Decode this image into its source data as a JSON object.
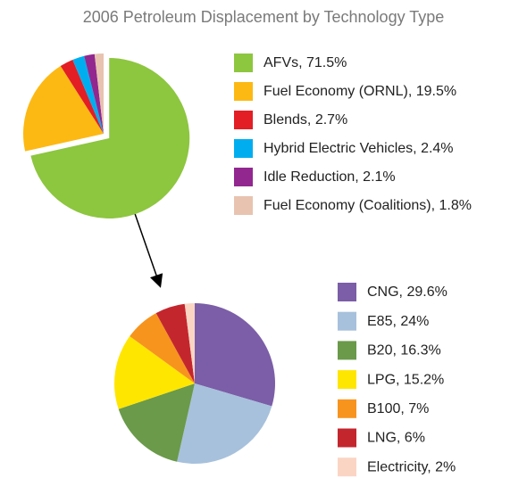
{
  "chart_data": [
    {
      "type": "pie",
      "title": "2006 Petroleum Displacement by Technology Type",
      "categories": [
        "AFVs, 71.5%",
        "Fuel Economy (ORNL), 19.5%",
        "Blends, 2.7%",
        "Hybrid Electric Vehicles, 2.4%",
        "Idle Reduction, 2.1%",
        "Fuel Economy (Coalitions), 1.8%"
      ],
      "values": [
        71.5,
        19.5,
        2.7,
        2.4,
        2.1,
        1.8
      ],
      "colors": [
        "#8dc63f",
        "#fdb913",
        "#e31e24",
        "#00aeef",
        "#92278f",
        "#e8c3b0"
      ],
      "explode": 0
    },
    {
      "type": "pie",
      "categories": [
        "CNG, 29.6%",
        "E85, 24%",
        "B20, 16.3%",
        "LPG, 15.2%",
        "B100, 7%",
        "LNG, 6%",
        "Electricity, 2%"
      ],
      "values": [
        29.6,
        24,
        16.3,
        15.2,
        7,
        6,
        2
      ],
      "colors": [
        "#7b5ea7",
        "#a7c1dc",
        "#6a9a4a",
        "#ffe600",
        "#f7941d",
        "#c4262e",
        "#fbd5c4"
      ]
    }
  ]
}
